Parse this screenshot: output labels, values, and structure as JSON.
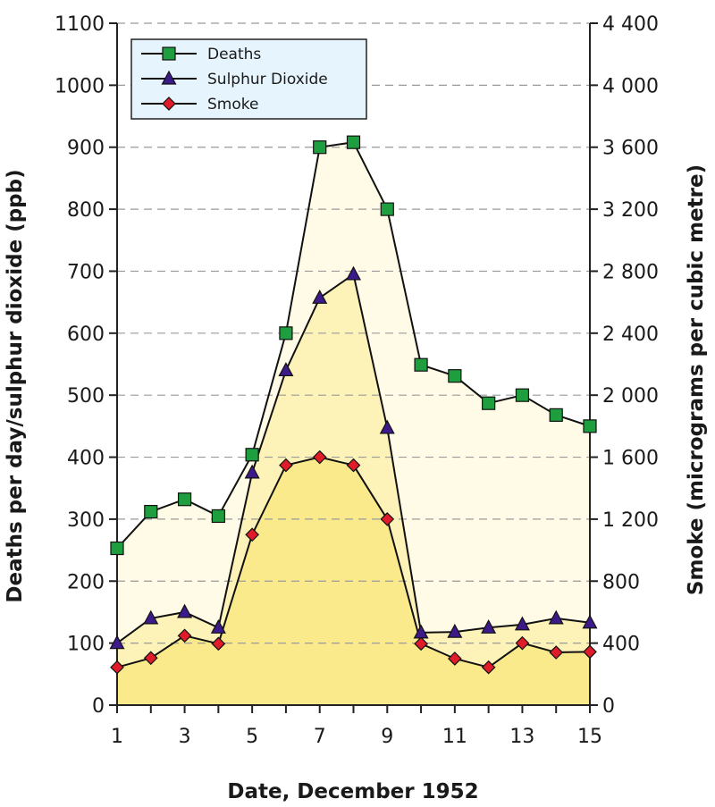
{
  "chart_data": {
    "type": "line",
    "xlabel": "Date, December 1952",
    "ylabel_left": "Deaths per day/sulphur dioxide (ppb)",
    "ylabel_right": "Smoke (micrograms per cubic metre)",
    "x": [
      1,
      2,
      3,
      4,
      5,
      6,
      7,
      8,
      9,
      10,
      11,
      12,
      13,
      14,
      15
    ],
    "x_tick_labels": [
      "1",
      "3",
      "5",
      "7",
      "9",
      "11",
      "13",
      "15"
    ],
    "x_ticks": [
      1,
      3,
      5,
      7,
      9,
      11,
      13,
      15
    ],
    "xlim": [
      1,
      15
    ],
    "ylim_left": [
      0,
      1100
    ],
    "ylim_right": [
      0,
      4400
    ],
    "y_ticks_left": [
      0,
      100,
      200,
      300,
      400,
      500,
      600,
      700,
      800,
      900,
      1000,
      1100
    ],
    "y_tick_labels_left": [
      "0",
      "100",
      "200",
      "300",
      "400",
      "500",
      "600",
      "700",
      "800",
      "900",
      "1000",
      "1100"
    ],
    "y_ticks_right": [
      0,
      400,
      800,
      1200,
      1600,
      2000,
      2400,
      2800,
      3200,
      3600,
      4000,
      4400
    ],
    "y_tick_labels_right": [
      "0",
      "400",
      "800",
      "1 200",
      "1 600",
      "2 000",
      "2 400",
      "2 800",
      "3 200",
      "3 600",
      "4 000",
      "4 400"
    ],
    "grid": "horizontal dashed",
    "legend_position": "top-left",
    "series": [
      {
        "name": "Deaths",
        "axis": "left",
        "marker": "square",
        "color": "#1f9e3f",
        "fill": "#fffbe6",
        "values": [
          253,
          312,
          332,
          305,
          404,
          600,
          900,
          908,
          800,
          549,
          531,
          487,
          500,
          468,
          450
        ]
      },
      {
        "name": "Sulphur Dioxide",
        "axis": "left",
        "marker": "triangle",
        "color": "#3d1a8a",
        "fill": "#fdf2b8",
        "values": [
          100,
          140,
          150,
          125,
          375,
          540,
          657,
          695,
          447,
          117,
          118,
          125,
          130,
          140,
          133
        ]
      },
      {
        "name": "Smoke",
        "axis": "right",
        "marker": "diamond",
        "color": "#e01b2a",
        "fill": "#faea8c",
        "values": [
          244,
          304,
          448,
          396,
          1100,
          1548,
          1600,
          1548,
          1200,
          396,
          300,
          244,
          400,
          340,
          344
        ]
      }
    ]
  }
}
